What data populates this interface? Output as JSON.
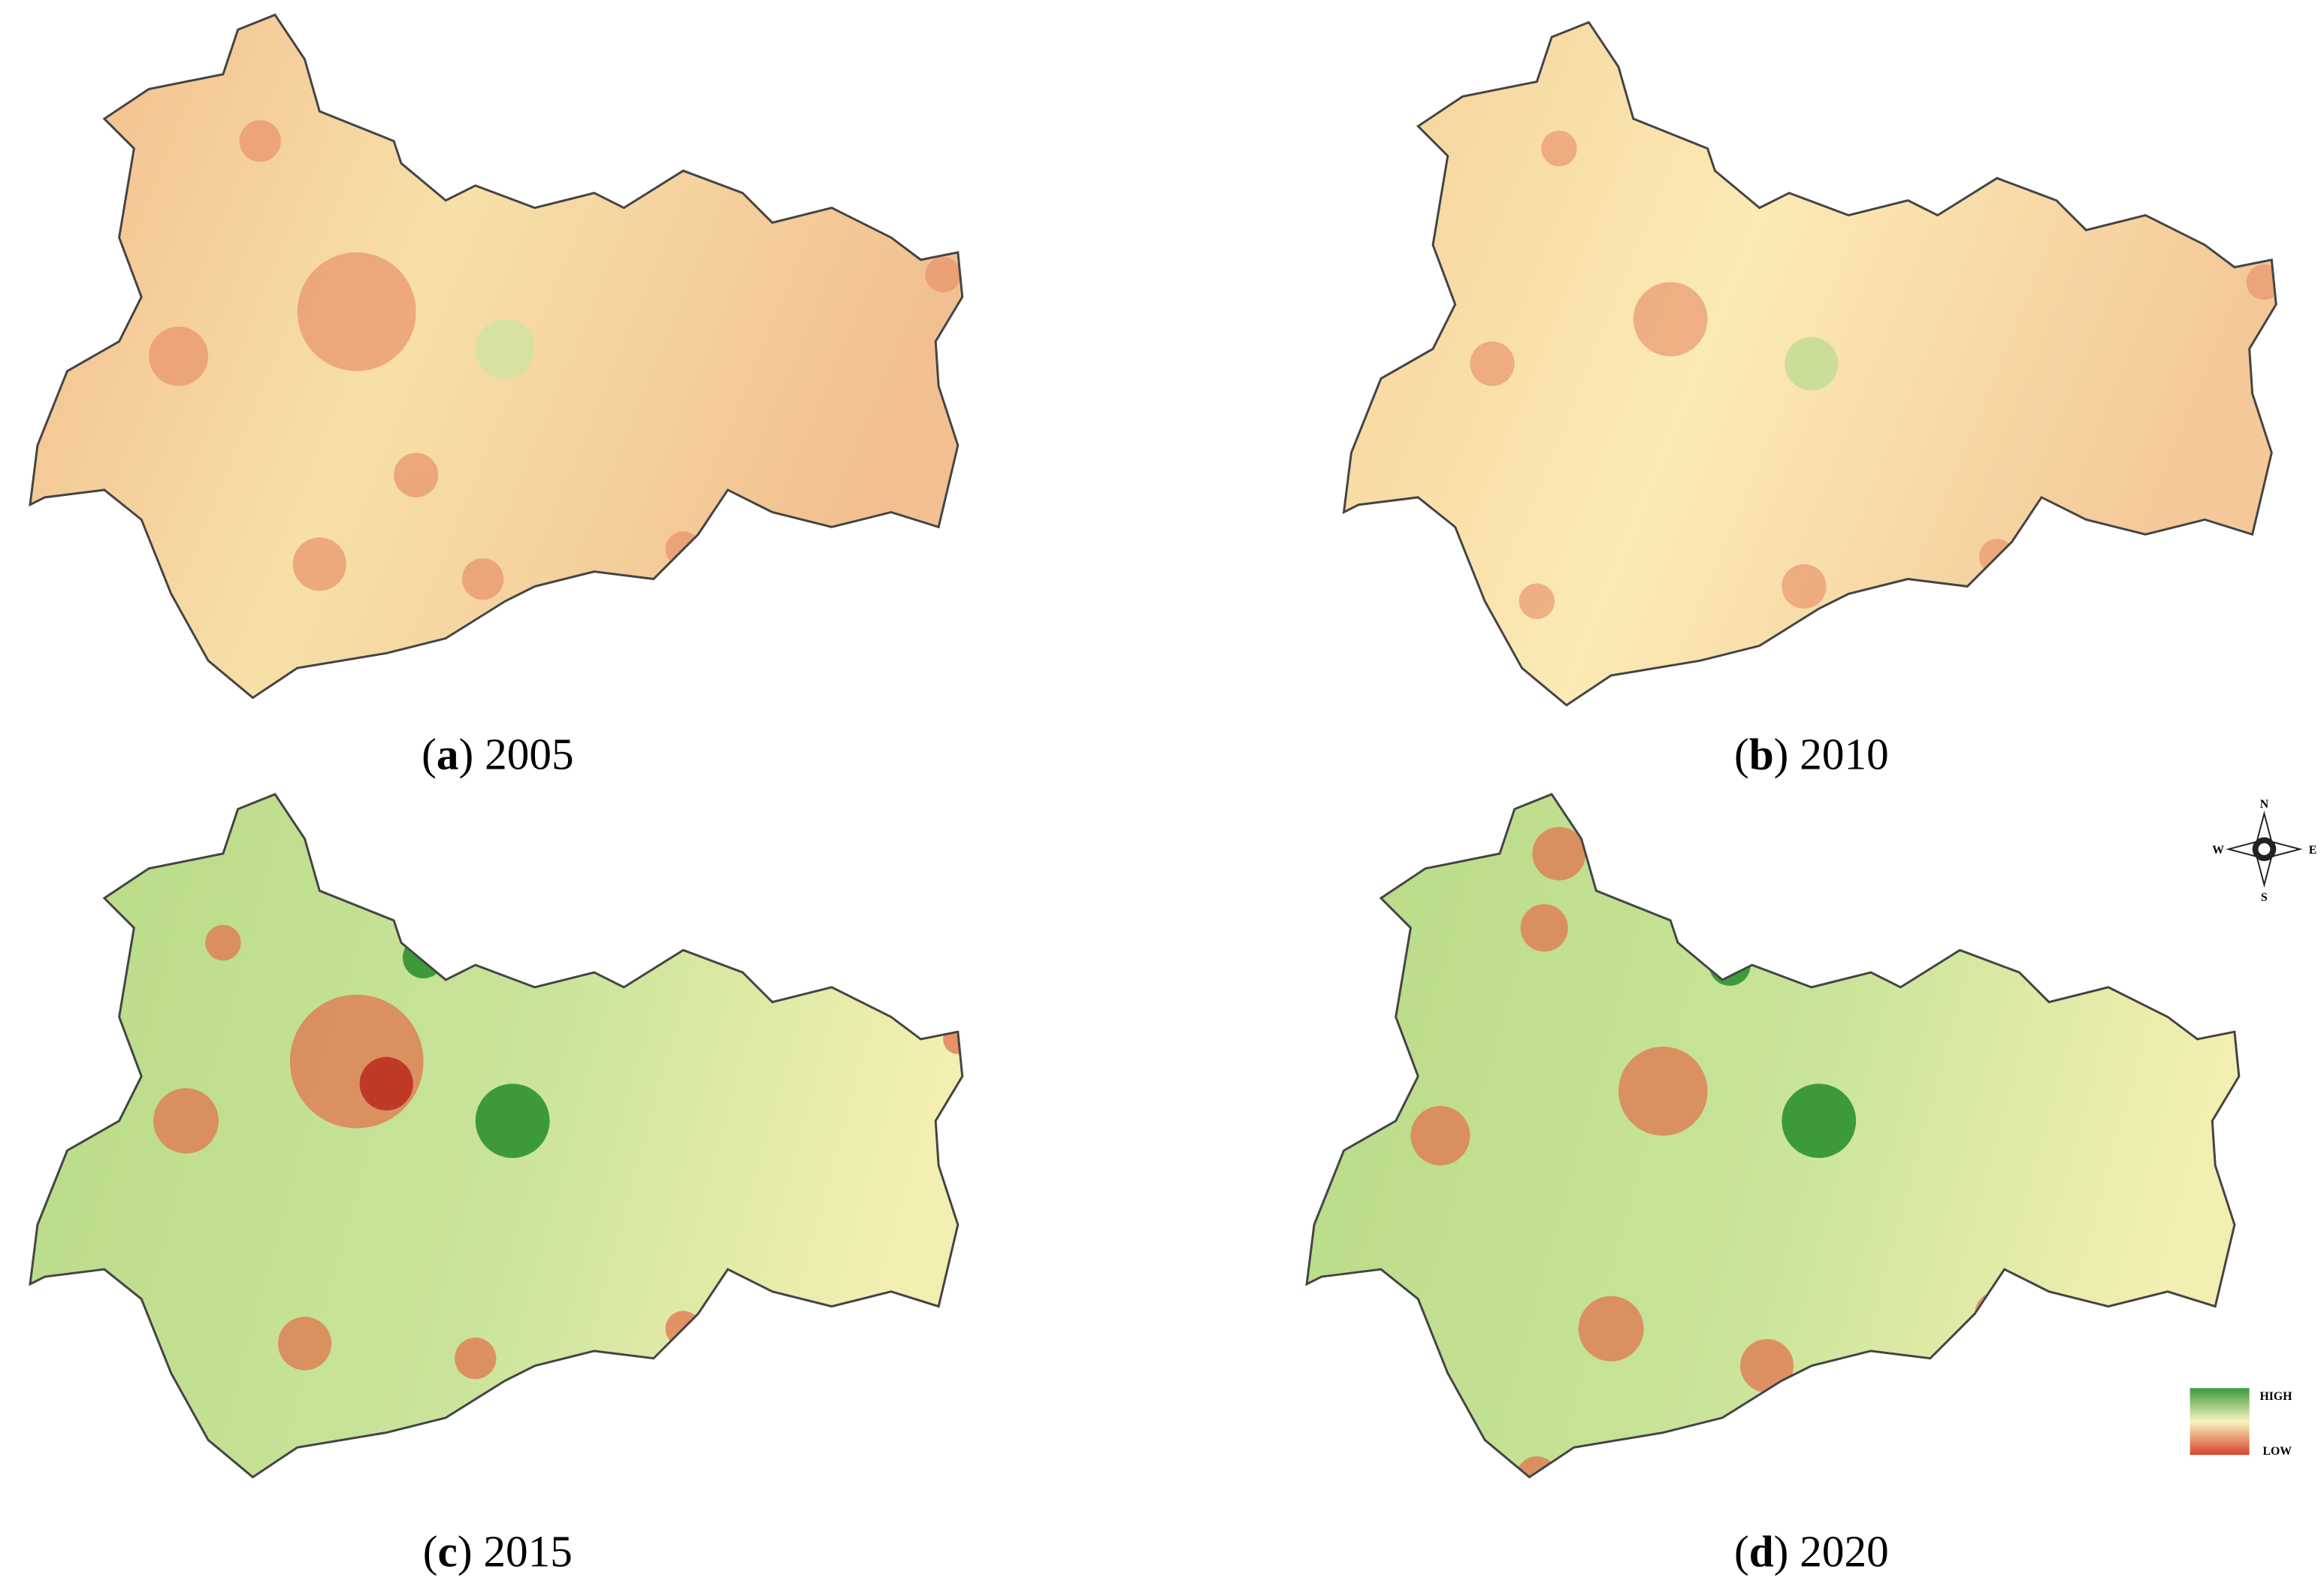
{
  "panels": [
    {
      "caption": [
        "(",
        "a",
        ") 2005"
      ]
    },
    {
      "caption": [
        "(",
        "b",
        ") 2010"
      ]
    },
    {
      "caption": [
        "(",
        "c",
        ") 2015"
      ]
    },
    {
      "caption": [
        "(",
        "d",
        ") 2020"
      ]
    }
  ],
  "compass": {
    "n": "N",
    "e": "E",
    "s": "S",
    "w": "W"
  },
  "legend": {
    "high": "HIGH",
    "low": "LOW"
  }
}
